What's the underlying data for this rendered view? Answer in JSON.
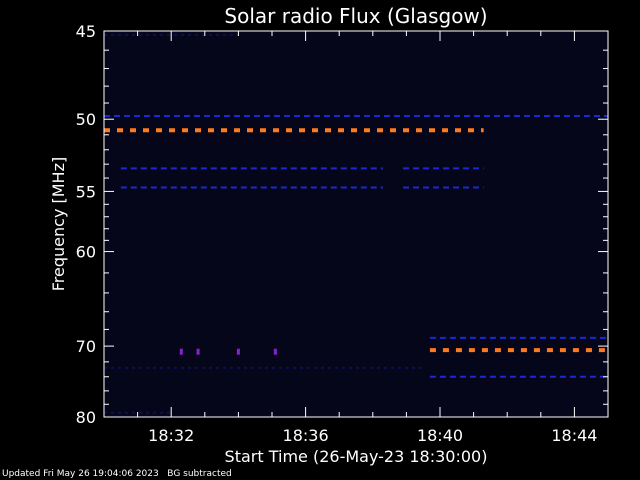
{
  "chart_data": {
    "type": "heatmap",
    "title": "Solar radio Flux (Glasgow)",
    "xlabel": "Start Time (26-May-23 18:30:00)",
    "ylabel": "Frequency [MHz]",
    "xlim_minutes": [
      0,
      15
    ],
    "ylim_mhz": [
      45,
      80
    ],
    "y_scale": "reciprocal",
    "grid": false,
    "x_ticks": [
      {
        "label": "18:32",
        "minute": 2
      },
      {
        "label": "18:36",
        "minute": 6
      },
      {
        "label": "18:40",
        "minute": 10
      },
      {
        "label": "18:44",
        "minute": 14
      }
    ],
    "y_ticks": [
      45,
      50,
      55,
      60,
      70,
      80
    ],
    "y_minor_ticks": [
      46,
      47,
      48,
      49,
      51,
      52,
      53,
      54,
      56,
      57,
      58,
      59,
      62,
      64,
      66,
      68,
      72,
      74,
      76,
      78
    ],
    "x_minor_ticks": [
      1,
      3,
      4,
      5,
      7,
      8,
      9,
      11,
      12,
      13
    ],
    "background_color": "#06061a",
    "bands": [
      {
        "freq_mhz": 50.7,
        "start_min": 0,
        "end_min": 11.3,
        "intensity": "high",
        "color": "#ff7a1e"
      },
      {
        "freq_mhz": 70.5,
        "start_min": 9.7,
        "end_min": 15,
        "intensity": "high",
        "color": "#ff7a1e"
      },
      {
        "freq_mhz": 49.8,
        "start_min": 0,
        "end_min": 15,
        "intensity": "low",
        "color": "#1a28d8"
      },
      {
        "freq_mhz": 53.3,
        "start_min": 0.5,
        "end_min": 8.3,
        "intensity": "low",
        "color": "#1a28d8"
      },
      {
        "freq_mhz": 53.3,
        "start_min": 8.9,
        "end_min": 11.3,
        "intensity": "low",
        "color": "#1a28d8"
      },
      {
        "freq_mhz": 54.7,
        "start_min": 0.5,
        "end_min": 8.3,
        "intensity": "low",
        "color": "#1a28d8"
      },
      {
        "freq_mhz": 54.7,
        "start_min": 8.9,
        "end_min": 11.3,
        "intensity": "low",
        "color": "#1a28d8"
      },
      {
        "freq_mhz": 69.0,
        "start_min": 9.7,
        "end_min": 15,
        "intensity": "low",
        "color": "#1a28d8"
      },
      {
        "freq_mhz": 74.0,
        "start_min": 9.7,
        "end_min": 15,
        "intensity": "low",
        "color": "#1a28d8"
      },
      {
        "freq_mhz": 72.8,
        "start_min": 0,
        "end_min": 9.5,
        "intensity": "faint",
        "color": "#12125a"
      },
      {
        "freq_mhz": 45.2,
        "start_min": 0,
        "end_min": 4,
        "intensity": "faint",
        "color": "#12125a"
      },
      {
        "freq_mhz": 79.3,
        "start_min": 0,
        "end_min": 2,
        "intensity": "faint",
        "color": "#12125a"
      }
    ],
    "spots": [
      {
        "freq_mhz": 70.7,
        "minute": 2.3,
        "color": "#8a1fd0"
      },
      {
        "freq_mhz": 70.7,
        "minute": 2.8,
        "color": "#8a1fd0"
      },
      {
        "freq_mhz": 70.7,
        "minute": 4.0,
        "color": "#8a1fd0"
      },
      {
        "freq_mhz": 70.7,
        "minute": 5.1,
        "color": "#8a1fd0"
      }
    ]
  },
  "footer": "Updated Fri May 26 19:04:06 2023   BG subtracted"
}
